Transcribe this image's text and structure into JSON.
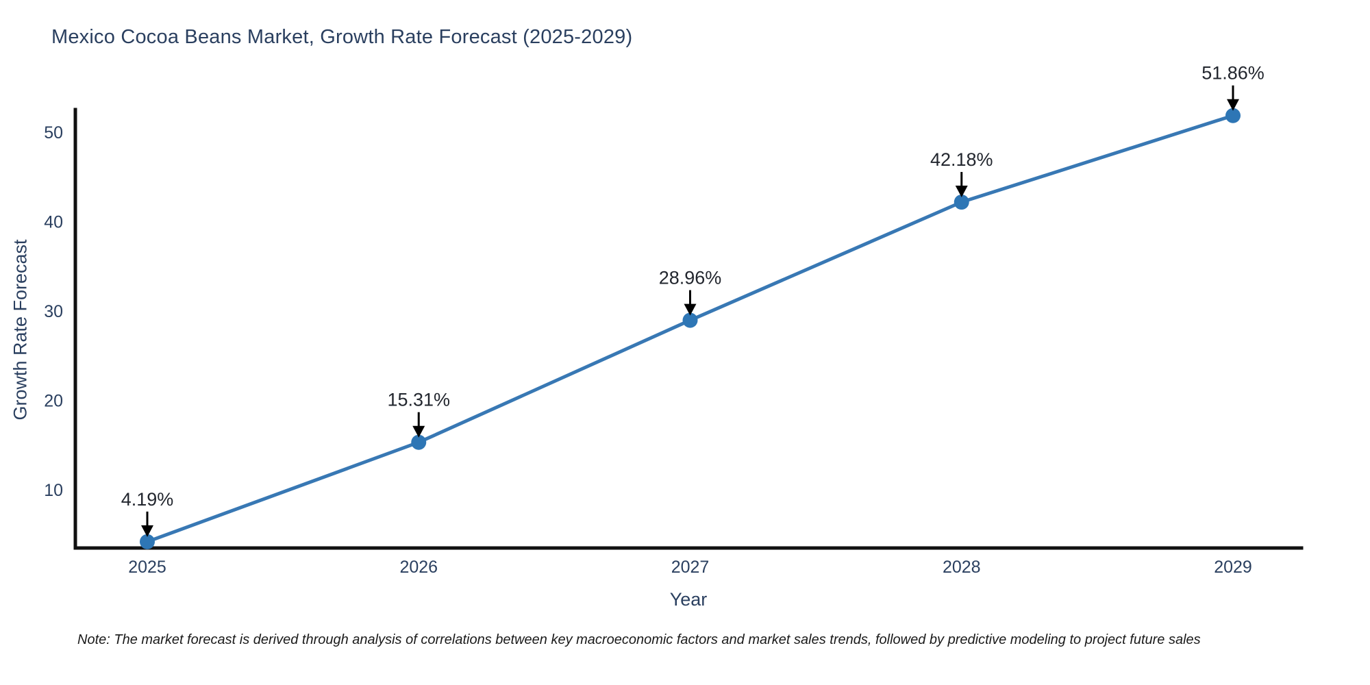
{
  "chart": {
    "title": "Mexico Cocoa Beans Market, Growth Rate Forecast (2025-2029)",
    "xlabel": "Year",
    "ylabel": "Growth Rate Forecast",
    "note": "Note: The market forecast is derived through analysis of correlations between key macroeconomic factors and market sales trends, followed by predictive modeling to project future sales"
  },
  "chart_data": {
    "type": "line",
    "title": "Mexico Cocoa Beans Market, Growth Rate Forecast (2025-2029)",
    "xlabel": "Year",
    "ylabel": "Growth Rate Forecast",
    "categories": [
      "2025",
      "2026",
      "2027",
      "2028",
      "2029"
    ],
    "series": [
      {
        "name": "Growth Rate Forecast",
        "values": [
          4.19,
          15.31,
          28.96,
          42.18,
          51.86
        ]
      }
    ],
    "point_labels": [
      "4.19%",
      "15.31%",
      "28.96%",
      "42.18%",
      "51.86%"
    ],
    "yticks": [
      10,
      20,
      30,
      40,
      50
    ],
    "ylim": [
      3.56,
      52.6
    ],
    "grid": false,
    "legend": false,
    "annotation_style": "black-down-arrow-to-point",
    "colors": {
      "line": "#3878b4",
      "marker": "#2e76b5",
      "axis": "#111111",
      "tick_text": "#2a3f5f",
      "annotation_text": "#22262e",
      "arrow": "#000000"
    }
  }
}
